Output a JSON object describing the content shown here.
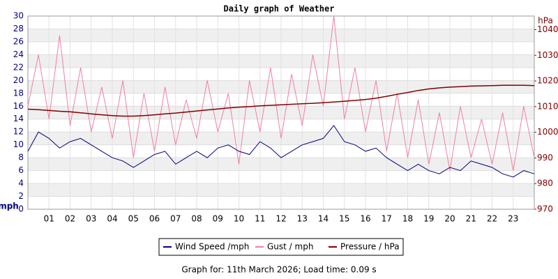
{
  "chart_data": {
    "type": "line",
    "title": "Daily graph of Weather",
    "ylabel": "mph",
    "y2label": "hPa",
    "footer": "Graph for: 11th March 2026; Load time: 0.09 s",
    "x": [
      0,
      0.5,
      1,
      1.5,
      2,
      2.5,
      3,
      3.5,
      4,
      4.5,
      5,
      5.5,
      6,
      6.5,
      7,
      7.5,
      8,
      8.5,
      9,
      9.5,
      10,
      10.5,
      11,
      11.5,
      12,
      12.5,
      13,
      13.5,
      14,
      14.5,
      15,
      15.5,
      16,
      16.5,
      17,
      17.5,
      18,
      18.5,
      19,
      19.5,
      20,
      20.5,
      21,
      21.5,
      22,
      22.5,
      23,
      23.5,
      24
    ],
    "xlim": [
      0,
      24
    ],
    "xticks": [
      {
        "value": 1,
        "label": "01"
      },
      {
        "value": 2,
        "label": "02"
      },
      {
        "value": 3,
        "label": "03"
      },
      {
        "value": 4,
        "label": "04"
      },
      {
        "value": 5,
        "label": "05"
      },
      {
        "value": 6,
        "label": "06"
      },
      {
        "value": 7,
        "label": "07"
      },
      {
        "value": 8,
        "label": "08"
      },
      {
        "value": 9,
        "label": "09"
      },
      {
        "value": 10,
        "label": "10"
      },
      {
        "value": 11,
        "label": "11"
      },
      {
        "value": 12,
        "label": "12"
      },
      {
        "value": 13,
        "label": "13"
      },
      {
        "value": 14,
        "label": "14"
      },
      {
        "value": 15,
        "label": "15"
      },
      {
        "value": 16,
        "label": "16"
      },
      {
        "value": 17,
        "label": "17"
      },
      {
        "value": 18,
        "label": "18"
      },
      {
        "value": 19,
        "label": "19"
      },
      {
        "value": 20,
        "label": "20"
      },
      {
        "value": 21,
        "label": "21"
      },
      {
        "value": 22,
        "label": "22"
      },
      {
        "value": 23,
        "label": "23"
      }
    ],
    "ylim": [
      0,
      30
    ],
    "yticks": [
      0,
      2,
      4,
      6,
      8,
      10,
      12,
      14,
      16,
      18,
      20,
      22,
      24,
      26,
      28,
      30
    ],
    "y2lim": [
      970,
      1045.3
    ],
    "y2ticks": [
      970,
      980,
      990,
      1000,
      1010,
      1020,
      1030,
      1040
    ],
    "grid": true,
    "series": [
      {
        "name": "Wind Speed /mph",
        "color": "#000080",
        "values": [
          9,
          12,
          11,
          9.5,
          10.5,
          11,
          10,
          9,
          8,
          7.5,
          6.5,
          7.5,
          8.5,
          9,
          7,
          8,
          9,
          8,
          9.5,
          10,
          9,
          8.5,
          10.5,
          9.5,
          8,
          9,
          10,
          10.5,
          11,
          13,
          10.5,
          10,
          9,
          9.5,
          8,
          7,
          6,
          7,
          6,
          5.5,
          6.5,
          6,
          7.5,
          7,
          6.5,
          5.5,
          5,
          6,
          5.5
        ]
      },
      {
        "name": "Gust / mph",
        "color": "#f080a0",
        "values": [
          16,
          24,
          14,
          27,
          13,
          22,
          12,
          19,
          11,
          20,
          8,
          18,
          9,
          19,
          10,
          17,
          11,
          20,
          12,
          18,
          7,
          20,
          12,
          22,
          11,
          21,
          13,
          24,
          16,
          30,
          14,
          22,
          12,
          20,
          9,
          18,
          8,
          17,
          7,
          15,
          6,
          16,
          8,
          14,
          7,
          15,
          6,
          16,
          8
        ]
      },
      {
        "name": "Pressure / hPa",
        "color": "#800000",
        "axis": "y2",
        "values": [
          1009,
          1008.8,
          1008.5,
          1008.2,
          1008,
          1007.6,
          1007.2,
          1006.8,
          1006.5,
          1006.3,
          1006.3,
          1006.5,
          1006.8,
          1007.2,
          1007.5,
          1007.9,
          1008.3,
          1008.7,
          1009.1,
          1009.5,
          1009.8,
          1010,
          1010.3,
          1010.5,
          1010.7,
          1010.9,
          1011.1,
          1011.3,
          1011.5,
          1011.8,
          1012.1,
          1012.4,
          1012.8,
          1013.3,
          1014,
          1014.8,
          1015.5,
          1016.3,
          1016.9,
          1017.3,
          1017.6,
          1017.8,
          1018,
          1018.1,
          1018.2,
          1018.3,
          1018.3,
          1018.3,
          1018.2
        ]
      }
    ]
  }
}
